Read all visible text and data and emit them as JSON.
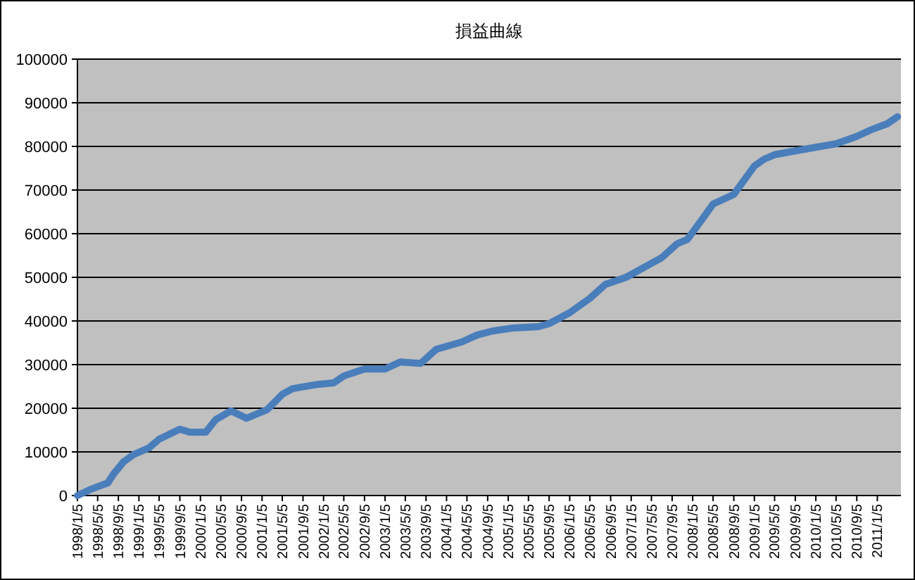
{
  "chart_data": {
    "type": "line",
    "title": "損益曲線",
    "color": "#4a7ebb",
    "grid": "y",
    "legend": false,
    "marker": "none",
    "line_style": "solid",
    "x": [
      "1998-01-05",
      "1998-04-05",
      "1998-07-05",
      "1998-08-05",
      "1998-10-05",
      "1998-12-05",
      "1999-03-05",
      "1999-05-05",
      "1999-09-05",
      "1999-11-05",
      "2000-02-05",
      "2000-04-05",
      "2000-07-05",
      "2000-10-05",
      "2001-02-05",
      "2001-05-05",
      "2001-07-05",
      "2001-12-05",
      "2002-03-05",
      "2002-05-05",
      "2002-09-05",
      "2003-01-05",
      "2003-04-05",
      "2003-08-05",
      "2003-11-05",
      "2004-04-05",
      "2004-07-05",
      "2004-10-05",
      "2005-02-05",
      "2005-07-05",
      "2005-09-05",
      "2006-01-05",
      "2006-05-05",
      "2006-08-05",
      "2006-12-05",
      "2007-05-05",
      "2007-07-05",
      "2007-10-05",
      "2007-12-05",
      "2008-03-05",
      "2008-05-05",
      "2008-09-05",
      "2008-10-05",
      "2009-01-05",
      "2009-03-05",
      "2009-05-05",
      "2009-11-05",
      "2010-05-05",
      "2010-09-05",
      "2010-12-05",
      "2011-03-05",
      "2011-05-05"
    ],
    "values": [
      0,
      1600,
      2900,
      4800,
      7700,
      9400,
      10900,
      12900,
      15200,
      14500,
      14500,
      17400,
      19400,
      17700,
      19700,
      23200,
      24500,
      25500,
      25800,
      27400,
      29000,
      29000,
      30600,
      30300,
      33500,
      35200,
      36800,
      37700,
      38400,
      38700,
      39400,
      41900,
      45200,
      48400,
      50000,
      53200,
      54500,
      57700,
      58700,
      63500,
      66800,
      69000,
      70600,
      75500,
      77100,
      78100,
      79400,
      80600,
      82300,
      83900,
      85200,
      86800
    ],
    "xlim": [
      "1998-01-05",
      "2011-05-25"
    ],
    "ylim": [
      0,
      100000
    ],
    "yticks": [
      0,
      10000,
      20000,
      30000,
      40000,
      50000,
      60000,
      70000,
      80000,
      90000,
      100000
    ],
    "xticks": [
      {
        "value": "1998-01-05",
        "label": "1998/1/5"
      },
      {
        "value": "1998-05-05",
        "label": "1998/5/5"
      },
      {
        "value": "1998-09-05",
        "label": "1998/9/5"
      },
      {
        "value": "1999-01-05",
        "label": "1999/1/5"
      },
      {
        "value": "1999-05-05",
        "label": "1999/5/5"
      },
      {
        "value": "1999-09-05",
        "label": "1999/9/5"
      },
      {
        "value": "2000-01-05",
        "label": "2000/1/5"
      },
      {
        "value": "2000-05-05",
        "label": "2000/5/5"
      },
      {
        "value": "2000-09-05",
        "label": "2000/9/5"
      },
      {
        "value": "2001-01-05",
        "label": "2001/1/5"
      },
      {
        "value": "2001-05-05",
        "label": "2001/5/5"
      },
      {
        "value": "2001-09-05",
        "label": "2001/9/5"
      },
      {
        "value": "2002-01-05",
        "label": "2002/1/5"
      },
      {
        "value": "2002-05-05",
        "label": "2002/5/5"
      },
      {
        "value": "2002-09-05",
        "label": "2002/9/5"
      },
      {
        "value": "2003-01-05",
        "label": "2003/1/5"
      },
      {
        "value": "2003-05-05",
        "label": "2003/5/5"
      },
      {
        "value": "2003-09-05",
        "label": "2003/9/5"
      },
      {
        "value": "2004-01-05",
        "label": "2004/1/5"
      },
      {
        "value": "2004-05-05",
        "label": "2004/5/5"
      },
      {
        "value": "2004-09-05",
        "label": "2004/9/5"
      },
      {
        "value": "2005-01-05",
        "label": "2005/1/5"
      },
      {
        "value": "2005-05-05",
        "label": "2005/5/5"
      },
      {
        "value": "2005-09-05",
        "label": "2005/9/5"
      },
      {
        "value": "2006-01-05",
        "label": "2006/1/5"
      },
      {
        "value": "2006-05-05",
        "label": "2006/5/5"
      },
      {
        "value": "2006-09-05",
        "label": "2006/9/5"
      },
      {
        "value": "2007-01-05",
        "label": "2007/1/5"
      },
      {
        "value": "2007-05-05",
        "label": "2007/5/5"
      },
      {
        "value": "2007-09-05",
        "label": "2007/9/5"
      },
      {
        "value": "2008-01-05",
        "label": "2008/1/5"
      },
      {
        "value": "2008-05-05",
        "label": "2008/5/5"
      },
      {
        "value": "2008-09-05",
        "label": "2008/9/5"
      },
      {
        "value": "2009-01-05",
        "label": "2009/1/5"
      },
      {
        "value": "2009-05-05",
        "label": "2009/5/5"
      },
      {
        "value": "2009-09-05",
        "label": "2009/9/5"
      },
      {
        "value": "2010-01-05",
        "label": "2010/1/5"
      },
      {
        "value": "2010-05-05",
        "label": "2010/5/5"
      },
      {
        "value": "2010-09-05",
        "label": "2010/9/5"
      },
      {
        "value": "2011-01-05",
        "label": "2011/1/5"
      }
    ]
  }
}
